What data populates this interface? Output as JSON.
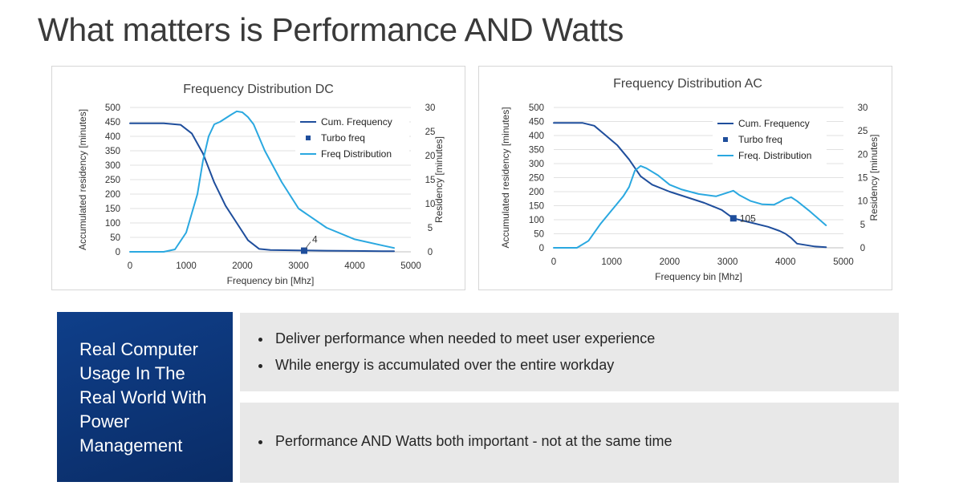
{
  "page": {
    "title": "What matters is Performance AND Watts"
  },
  "colors": {
    "cum": "#1f4e9c",
    "dist": "#2aa8e0",
    "turbo": "#1f4e9c",
    "side_box": "#0f3f8a"
  },
  "chart_data": [
    {
      "type": "line",
      "title": "Frequency Distribution DC",
      "xlabel": "Frequency bin [Mhz]",
      "ylabel": "Accumulated residency [minutes]",
      "y2label": "Residency [minutes]",
      "xlim": [
        0,
        5000
      ],
      "ylim": [
        0,
        500
      ],
      "y2lim": [
        0,
        30
      ],
      "xticks": [
        "0",
        "1000",
        "2000",
        "3000",
        "4000",
        "5000"
      ],
      "yticks": [
        "0",
        "50",
        "100",
        "150",
        "200",
        "250",
        "300",
        "350",
        "400",
        "450",
        "500"
      ],
      "y2ticks": [
        "0",
        "5",
        "10",
        "15",
        "20",
        "25",
        "30"
      ],
      "legend": [
        "Cum. Frequency",
        "Turbo freq",
        "Freq Distribution"
      ],
      "series": [
        {
          "name": "Cum. Frequency",
          "axis": "left",
          "x": [
            0,
            600,
            900,
            1100,
            1300,
            1500,
            1700,
            1900,
            2100,
            2300,
            2500,
            3000,
            3500,
            4000,
            4500,
            4700
          ],
          "y": [
            445,
            445,
            440,
            410,
            340,
            240,
            160,
            100,
            40,
            10,
            6,
            5,
            4,
            3,
            2,
            2
          ]
        },
        {
          "name": "Freq Distribution",
          "axis": "right",
          "x": [
            0,
            600,
            800,
            1000,
            1200,
            1300,
            1400,
            1500,
            1600,
            1800,
            1900,
            2000,
            2100,
            2200,
            2400,
            2700,
            3000,
            3500,
            4000,
            4500,
            4700
          ],
          "y": [
            0,
            0,
            0.5,
            4,
            12,
            19,
            24,
            26.5,
            27,
            28.5,
            29.2,
            29,
            28,
            26.5,
            21,
            14.5,
            9,
            5,
            2.6,
            1.3,
            0.8
          ]
        }
      ],
      "turbo": {
        "name": "Turbo freq",
        "x": 3100,
        "y": 4,
        "label": "4"
      }
    },
    {
      "type": "line",
      "title": "Frequency Distribution AC",
      "xlabel": "Frequency bin [Mhz]",
      "ylabel": "Accumulated residency [minutes]",
      "y2label": "Residency [minutes]",
      "xlim": [
        0,
        5000
      ],
      "ylim": [
        0,
        500
      ],
      "y2lim": [
        0,
        30
      ],
      "xticks": [
        "0",
        "1000",
        "2000",
        "3000",
        "4000",
        "5000"
      ],
      "yticks": [
        "0",
        "50",
        "100",
        "150",
        "200",
        "250",
        "300",
        "350",
        "400",
        "450",
        "500"
      ],
      "y2ticks": [
        "0",
        "5",
        "10",
        "15",
        "20",
        "25",
        "30"
      ],
      "legend": [
        "Cum. Frequency",
        "Turbo freq",
        "Freq. Distribution"
      ],
      "series": [
        {
          "name": "Cum. Frequency",
          "axis": "left",
          "x": [
            0,
            500,
            700,
            900,
            1100,
            1300,
            1500,
            1700,
            2000,
            2300,
            2600,
            2900,
            3100,
            3400,
            3700,
            3900,
            4000,
            4100,
            4200,
            4500,
            4700
          ],
          "y": [
            445,
            445,
            435,
            400,
            365,
            315,
            255,
            225,
            200,
            180,
            160,
            135,
            105,
            90,
            75,
            60,
            50,
            35,
            15,
            5,
            2
          ]
        },
        {
          "name": "Freq. Distribution",
          "axis": "right",
          "x": [
            0,
            400,
            600,
            800,
            1000,
            1200,
            1300,
            1400,
            1500,
            1600,
            1800,
            2000,
            2200,
            2500,
            2800,
            3000,
            3100,
            3200,
            3400,
            3600,
            3800,
            3900,
            4000,
            4100,
            4200,
            4400,
            4700
          ],
          "y": [
            0,
            0,
            1.5,
            5,
            8,
            11,
            13,
            16.5,
            17.5,
            17,
            15.5,
            13.5,
            12.5,
            11.5,
            11,
            11.8,
            12.2,
            11.3,
            10,
            9.3,
            9.2,
            9.8,
            10.5,
            10.8,
            10,
            8,
            4.8
          ]
        }
      ],
      "turbo": {
        "name": "Turbo freq",
        "x": 3100,
        "y": 105,
        "label": "105"
      }
    }
  ],
  "side_box": {
    "text": "Real Computer Usage In The Real World With Power Management"
  },
  "bullets_top": [
    "Deliver performance when needed to meet user experience",
    "While energy is accumulated over the entire workday"
  ],
  "bullets_bottom": [
    "Performance AND Watts both important - not at the same time"
  ]
}
